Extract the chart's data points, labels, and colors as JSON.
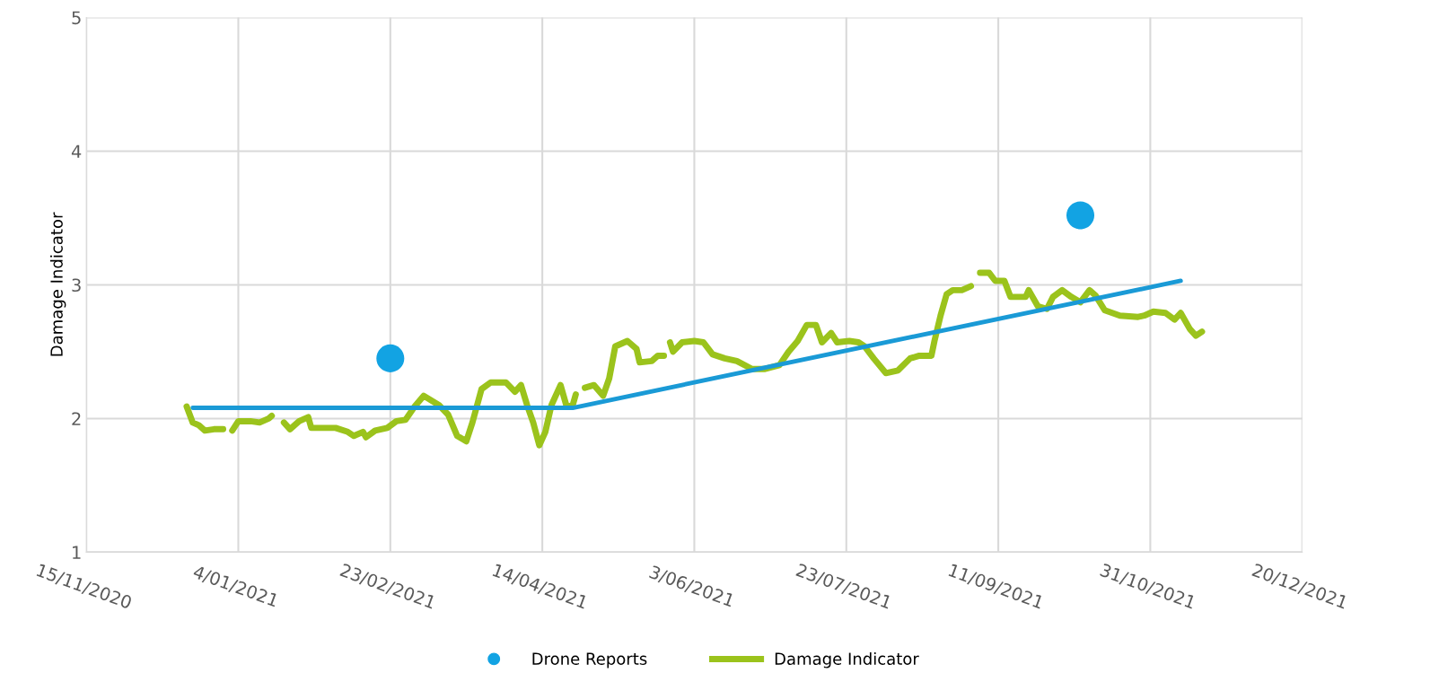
{
  "chart_data": {
    "type": "line",
    "ylabel": "Damage Indicator",
    "xlim": [
      "2020-11-15",
      "2021-12-20"
    ],
    "ylim": [
      1,
      5
    ],
    "yticks": [
      1,
      2,
      3,
      4,
      5
    ],
    "xticks": [
      {
        "value": "2020-11-15",
        "label": "15/11/2020"
      },
      {
        "value": "2021-01-04",
        "label": "4/01/2021"
      },
      {
        "value": "2021-02-23",
        "label": "23/02/2021"
      },
      {
        "value": "2021-04-14",
        "label": "14/04/2021"
      },
      {
        "value": "2021-06-03",
        "label": "3/06/2021"
      },
      {
        "value": "2021-07-23",
        "label": "23/07/2021"
      },
      {
        "value": "2021-09-11",
        "label": "11/09/2021"
      },
      {
        "value": "2021-10-31",
        "label": "31/10/2021"
      },
      {
        "value": "2021-12-20",
        "label": "20/12/2021"
      }
    ],
    "grid": true,
    "legend": "bottom",
    "series": [
      {
        "name": "Drone Reports",
        "type": "scatter",
        "marker": "circle",
        "color": "#12a3e3",
        "x": [
          "2021-02-23",
          "2021-10-08"
        ],
        "values": [
          2.45,
          3.52
        ]
      },
      {
        "name": "Damage Indicator",
        "color": "#9bc31c",
        "x": [
          "2020-12-18",
          "2020-12-20",
          "2020-12-22",
          "2020-12-24",
          "2020-12-27",
          "2020-12-30",
          "2020-12-31",
          "2021-01-02",
          "2021-01-04",
          "2021-01-08",
          "2021-01-11",
          "2021-01-14",
          "2021-01-15",
          "2021-01-17",
          "2021-01-19",
          "2021-01-21",
          "2021-01-24",
          "2021-01-27",
          "2021-01-28",
          "2021-02-05",
          "2021-02-09",
          "2021-02-11",
          "2021-02-14",
          "2021-02-15",
          "2021-02-18",
          "2021-02-22",
          "2021-02-25",
          "2021-02-28",
          "2021-03-03",
          "2021-03-06",
          "2021-03-11",
          "2021-03-14",
          "2021-03-17",
          "2021-03-20",
          "2021-03-22",
          "2021-03-25",
          "2021-03-28",
          "2021-04-02",
          "2021-04-05",
          "2021-04-07",
          "2021-04-09",
          "2021-04-11",
          "2021-04-13",
          "2021-04-15",
          "2021-04-17",
          "2021-04-20",
          "2021-04-22",
          "2021-04-24",
          "2021-04-25",
          "2021-04-27",
          "2021-04-28",
          "2021-05-01",
          "2021-05-04",
          "2021-05-06",
          "2021-05-08",
          "2021-05-12",
          "2021-05-15",
          "2021-05-16",
          "2021-05-20",
          "2021-05-22",
          "2021-05-24",
          "2021-05-25",
          "2021-05-26",
          "2021-05-27",
          "2021-05-30",
          "2021-06-03",
          "2021-06-06",
          "2021-06-09",
          "2021-06-13",
          "2021-06-17",
          "2021-06-22",
          "2021-06-26",
          "2021-07-01",
          "2021-07-04",
          "2021-07-07",
          "2021-07-10",
          "2021-07-13",
          "2021-07-15",
          "2021-07-18",
          "2021-07-20",
          "2021-07-24",
          "2021-07-27",
          "2021-07-29",
          "2021-08-01",
          "2021-08-05",
          "2021-08-09",
          "2021-08-13",
          "2021-08-16",
          "2021-08-20",
          "2021-08-21",
          "2021-08-23",
          "2021-08-25",
          "2021-08-27",
          "2021-08-30",
          "2021-09-02",
          "2021-09-04",
          "2021-09-05",
          "2021-09-08",
          "2021-09-10",
          "2021-09-13",
          "2021-09-15",
          "2021-09-20",
          "2021-09-21",
          "2021-09-24",
          "2021-09-27",
          "2021-09-29",
          "2021-10-02",
          "2021-10-05",
          "2021-10-08",
          "2021-10-11",
          "2021-10-13",
          "2021-10-16",
          "2021-10-21",
          "2021-10-27",
          "2021-10-29",
          "2021-11-01",
          "2021-11-05",
          "2021-11-08",
          "2021-11-10",
          "2021-11-13",
          "2021-11-15",
          "2021-11-17"
        ],
        "values": [
          2.09,
          1.97,
          1.95,
          1.91,
          1.92,
          1.92,
          null,
          1.91,
          1.98,
          1.98,
          1.97,
          2.0,
          2.02,
          null,
          1.97,
          1.92,
          1.98,
          2.01,
          1.93,
          1.93,
          1.9,
          1.87,
          1.9,
          1.86,
          1.91,
          1.93,
          1.98,
          1.99,
          2.09,
          2.17,
          2.1,
          2.03,
          1.87,
          1.83,
          1.97,
          2.22,
          2.27,
          2.27,
          2.2,
          2.25,
          2.1,
          1.97,
          1.8,
          1.9,
          2.1,
          2.25,
          2.09,
          2.1,
          2.18,
          null,
          2.23,
          2.25,
          2.17,
          2.3,
          2.54,
          2.58,
          2.52,
          2.42,
          2.43,
          2.47,
          2.47,
          null,
          2.57,
          2.5,
          2.57,
          2.58,
          2.57,
          2.48,
          2.45,
          2.43,
          2.37,
          2.37,
          2.4,
          2.5,
          2.58,
          2.7,
          2.7,
          2.57,
          2.64,
          2.57,
          2.58,
          2.57,
          2.54,
          2.45,
          2.34,
          2.36,
          2.45,
          2.47,
          2.47,
          2.58,
          2.77,
          2.93,
          2.96,
          2.96,
          2.99,
          null,
          3.09,
          3.09,
          3.03,
          3.03,
          2.91,
          2.91,
          2.96,
          2.84,
          2.82,
          2.91,
          2.96,
          2.91,
          2.87,
          2.96,
          2.92,
          2.81,
          2.77,
          2.76,
          2.77,
          2.8,
          2.79,
          2.74,
          2.79,
          2.67,
          2.62,
          2.65
        ]
      },
      {
        "color": "#1a9ad6",
        "x": [
          "2020-12-20",
          "2021-04-24",
          "2021-11-10"
        ],
        "values": [
          2.08,
          2.08,
          3.03
        ]
      }
    ]
  }
}
